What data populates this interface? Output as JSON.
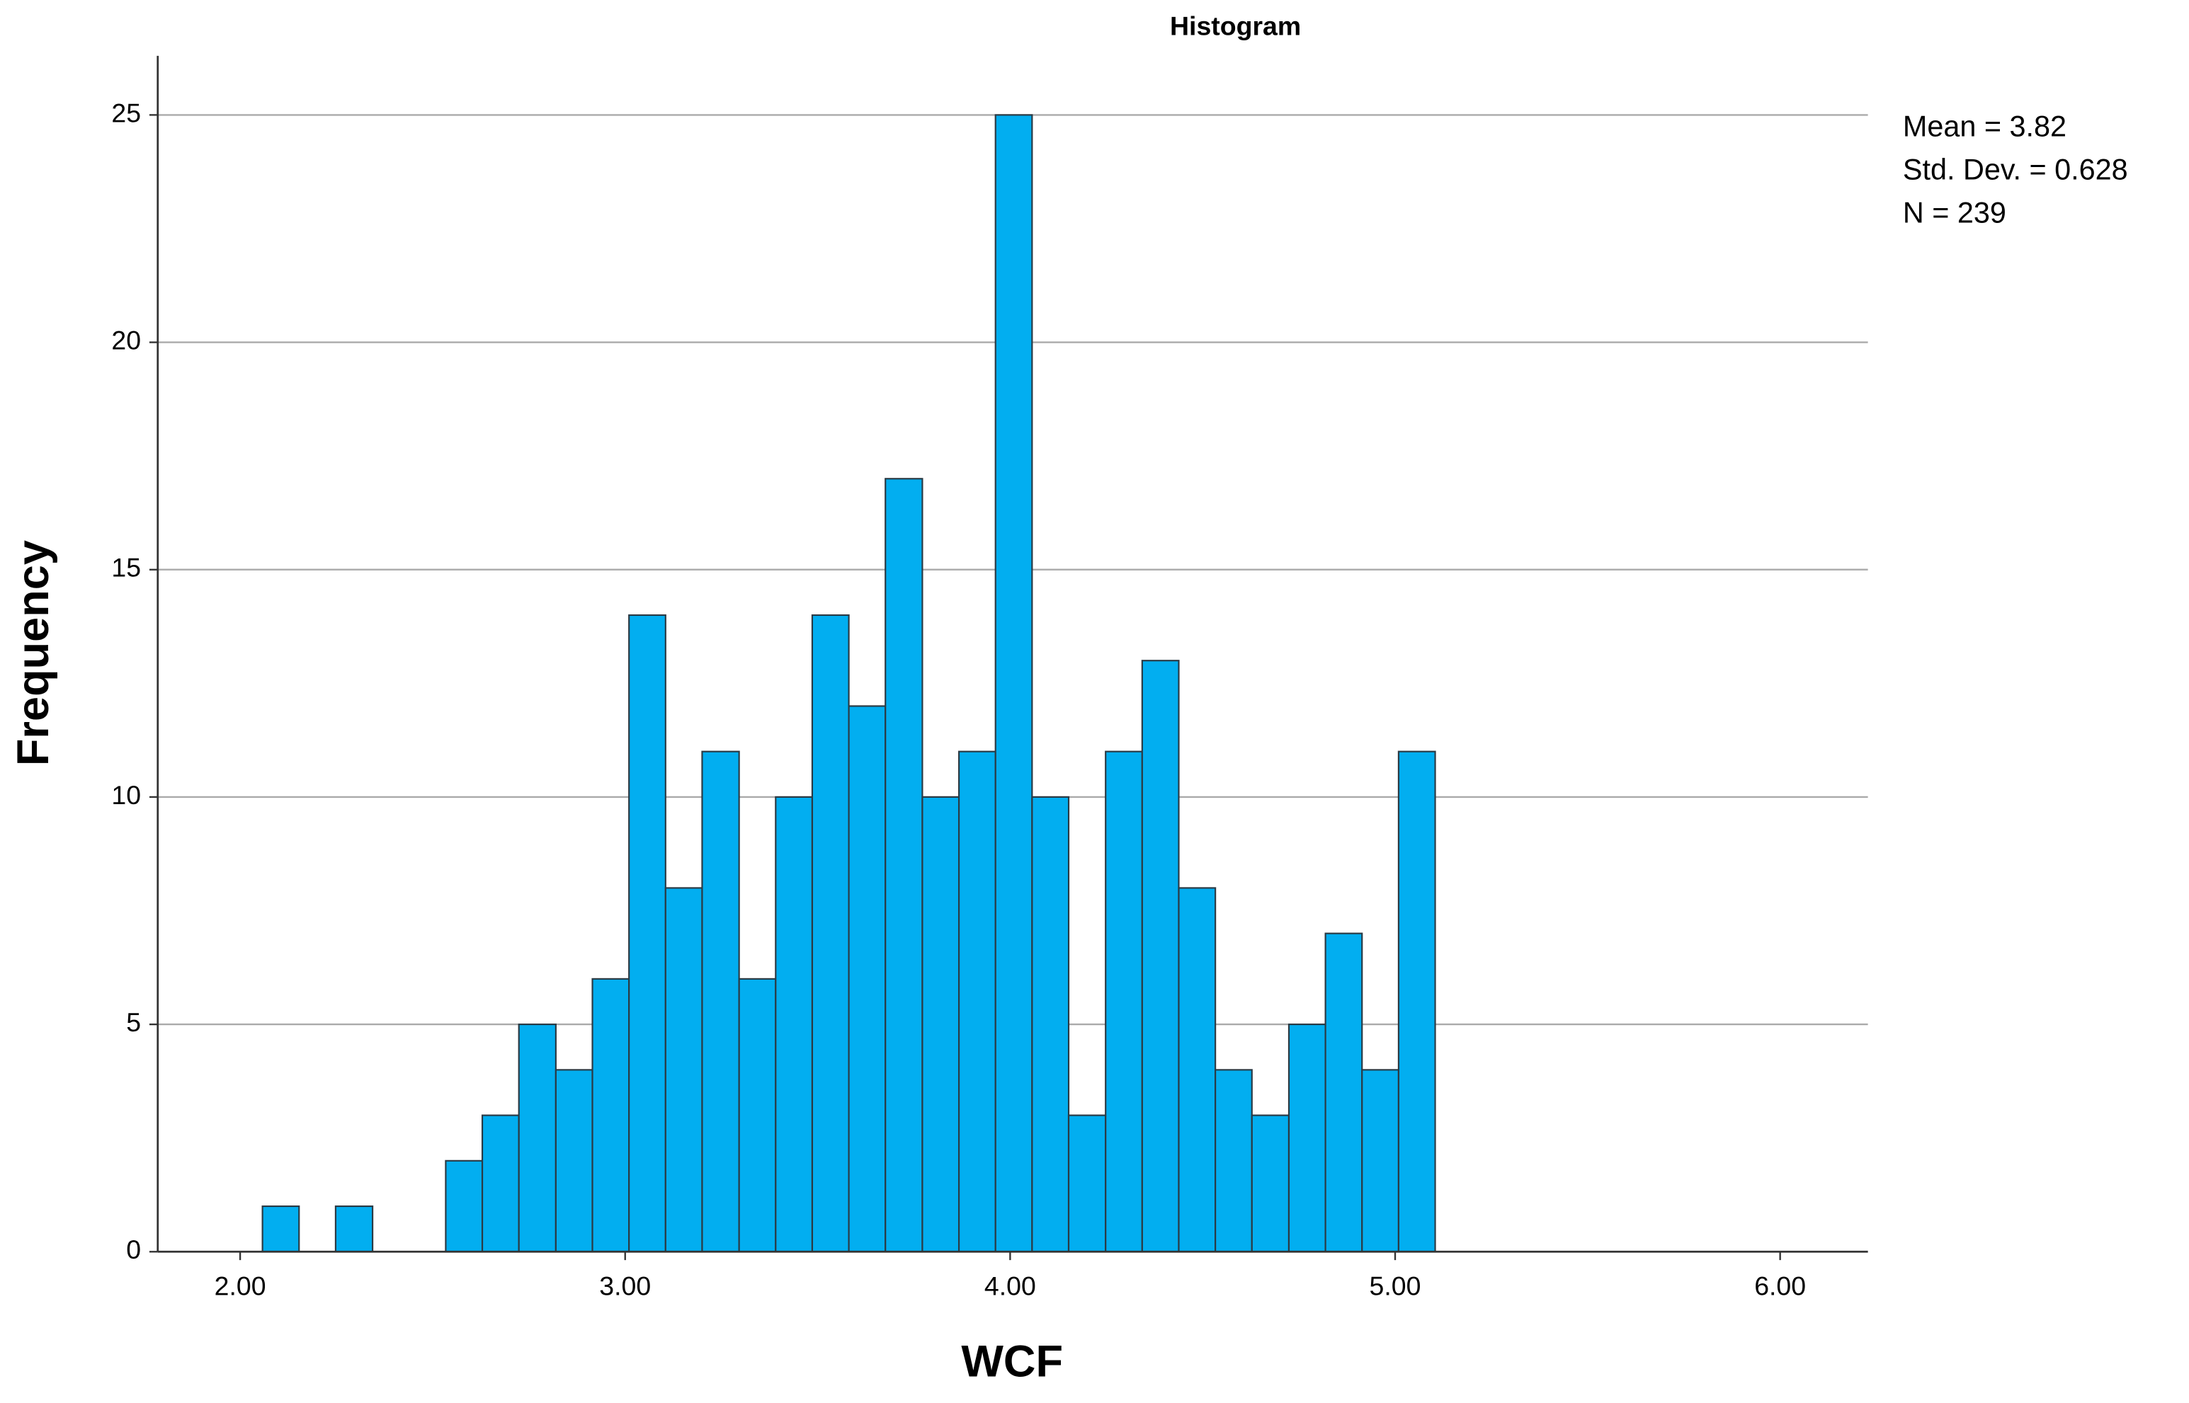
{
  "chart_data": {
    "type": "histogram",
    "title": "Histogram",
    "x_label": "WCF",
    "y_label": "Frequency",
    "bins": [
      2.058,
      2.153,
      2.248,
      2.344,
      2.439,
      2.534,
      2.629,
      2.724,
      2.82,
      2.915,
      3.01,
      3.105,
      3.2,
      3.296,
      3.391,
      3.486,
      3.581,
      3.676,
      3.772,
      3.867,
      3.962,
      4.057,
      4.152,
      4.248,
      4.343,
      4.438,
      4.533,
      4.628,
      4.724,
      4.819,
      4.914,
      5.009,
      5.104
    ],
    "values": [
      1,
      0,
      1,
      0,
      0,
      2,
      3,
      5,
      4,
      6,
      14,
      8,
      11,
      6,
      10,
      14,
      12,
      17,
      10,
      11,
      25,
      10,
      3,
      11,
      13,
      8,
      4,
      3,
      5,
      7,
      4,
      11
    ],
    "color": "#02aef0",
    "xlim": [
      1.786,
      6.228
    ],
    "xticks": [
      {
        "value": 2,
        "label": "2.00"
      },
      {
        "value": 3,
        "label": "3.00"
      },
      {
        "value": 4,
        "label": "4.00"
      },
      {
        "value": 5,
        "label": "5.00"
      },
      {
        "value": 6,
        "label": "6.00"
      }
    ],
    "ylim": [
      0,
      26.3
    ],
    "yticks": [
      0,
      5,
      10,
      15,
      20,
      25
    ],
    "grid": true,
    "annotations": [
      "Mean = 3.82",
      "Std. Dev. = 0.628",
      "N = 239"
    ]
  }
}
